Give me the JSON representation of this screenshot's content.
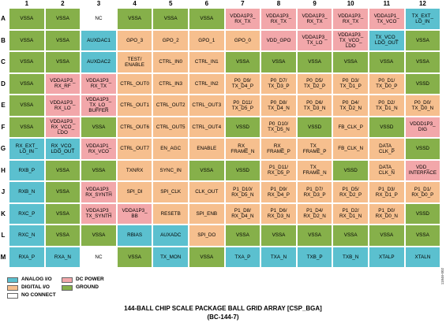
{
  "columns": [
    "1",
    "2",
    "3",
    "4",
    "5",
    "6",
    "7",
    "8",
    "9",
    "10",
    "11",
    "12"
  ],
  "rows": [
    "A",
    "B",
    "C",
    "D",
    "E",
    "F",
    "G",
    "H",
    "J",
    "K",
    "L",
    "M"
  ],
  "colors": {
    "analog": "#5bc0cf",
    "digital": "#f6bf8e",
    "power": "#f2a7aa",
    "ground": "#86b04a",
    "nc": "#ffffff"
  },
  "cells": [
    [
      "VSSA",
      "VSSA",
      "NC",
      "VSSA",
      "VSSA",
      "VSSA",
      "VDDA1P3_\nRX_TX",
      "VDDA1P3_\nRX_TX",
      "VDDA1P3_\nRX_TX",
      "VDDA1P3_\nRX_TX",
      "VDDA1P1_\nTX_VCO",
      "TX_EXT_\nLO_IN"
    ],
    [
      "VSSA",
      "VSSA",
      "AUXDAC1",
      "GPO_3",
      "GPO_2",
      "GPO_1",
      "GPO_0",
      "VDD_GPO",
      "VDDA1P3_\nTX_LO",
      "VDDA1P3_\nTX_VCO_\nLDO",
      "TX_VCO_\nLDO_OUT",
      "VSSA"
    ],
    [
      "VSSA",
      "VSSA",
      "AUXDAC2",
      "TEST/\nENABLE",
      "CTRL_IN0",
      "CTRL_IN1",
      "VSSA",
      "VSSA",
      "VSSA",
      "VSSA",
      "VSSA",
      "VSSA"
    ],
    [
      "VSSA",
      "VDDA1P3_\nRX_RF",
      "VDDA1P3_\nRX_TX",
      "CTRL_OUT0",
      "CTRL_IN3",
      "CTRL_IN2",
      "P0_D9/\nTX_D4_P",
      "P0_D7/\nTX_D3_P",
      "P0_D5/\nTX_D2_P",
      "P0_D3/\nTX_D1_P",
      "P0_D1/\nTX_D0_P",
      "VSSD"
    ],
    [
      "VSSA",
      "VDDA1P3_\nRX_LO",
      "VDDA1P3_\nTX_LO_\nBUFFER",
      "CTRL_OUT1",
      "CTRL_OUT2",
      "CTRL_OUT3",
      "P0_D11/\nTX_D5_P",
      "P0_D8/\nTX_D4_N",
      "P0_D6/\nTX_D3_N",
      "P0_D4/\nTX_D2_N",
      "P0_D2/\nTX_D1_N",
      "P0_D0/\nTX_D0_N"
    ],
    [
      "VSSA",
      "VDDA1P3_\nRX_VCO_\nLDO",
      "VSSA",
      "CTRL_OUT6",
      "CTRL_OUT5",
      "CTRL_OUT4",
      "VSSD",
      "P0_D10/\nTX_D5_N",
      "VSSD",
      "FB_CLK_P",
      "VSSD",
      "VDDD1P3_\nDIG"
    ],
    [
      "RX_EXT_\nLO_IN",
      "RX_VCO_\nLDO_OUT",
      "VDDA1P1_\nRX_VCO",
      "CTRL_OUT7",
      "EN_AGC",
      "ENABLE",
      "RX_\nFRAME_N",
      "RX_\nFRAME_P",
      "TX_\nFRAME_P",
      "FB_CLK_N",
      "DATA_\nCLK_P",
      "VSSD"
    ],
    [
      "RXB_P",
      "VSSA",
      "VSSA",
      "TXNRX",
      "SYNC_IN",
      "VSSA",
      "VSSD",
      "P1_D11/\nRX_D5_P",
      "TX_\nFRAME_N",
      "VSSD",
      "DATA_\nCLK_N",
      "VDD_\nINTERFACE"
    ],
    [
      "RXB_N",
      "VSSA",
      "VDDA1P3_\nRX_SYNTH",
      "SPI_DI",
      "SPI_CLK",
      "CLK_OUT",
      "P1_D10/\nRX_D5_N",
      "P1_D9/\nRX_D4_P",
      "P1_D7/\nRX_D3_P",
      "P1_D5/\nRX_D2_P",
      "P1_D3/\nRX_D1_P",
      "P1_D1/\nRX_D0_P"
    ],
    [
      "RXC_P",
      "VSSA",
      "VDDA1P3_\nTX_SYNTH",
      "VDDA1P3_\nBB",
      "RESETB",
      "SPI_ENB",
      "P1_D8/\nRX_D4_N",
      "P1_D6/\nRX_D3_N",
      "P1_D4/\nRX_D2_N",
      "P1_D2/\nRX_D1_N",
      "P1_D0/\nRX_D0_N",
      "VSSD"
    ],
    [
      "RXC_N",
      "VSSA",
      "VSSA",
      "RBIAS",
      "AUXADC",
      "SPI_DO",
      "VSSA",
      "VSSA",
      "VSSA",
      "VSSA",
      "VSSA",
      "VSSA"
    ],
    [
      "RXA_P",
      "RXA_N",
      "NC",
      "VSSA",
      "TX_MON",
      "VSSA",
      "TXA_P",
      "TXA_N",
      "TXB_P",
      "TXB_N",
      "XTALP",
      "XTALN"
    ]
  ],
  "types": [
    [
      "G",
      "G",
      "N",
      "G",
      "G",
      "G",
      "P",
      "P",
      "P",
      "P",
      "P",
      "A"
    ],
    [
      "G",
      "G",
      "A",
      "D",
      "D",
      "D",
      "D",
      "P",
      "P",
      "P",
      "A",
      "G"
    ],
    [
      "G",
      "G",
      "A",
      "D",
      "D",
      "D",
      "G",
      "G",
      "G",
      "G",
      "G",
      "G"
    ],
    [
      "G",
      "P",
      "P",
      "D",
      "D",
      "D",
      "D",
      "D",
      "D",
      "D",
      "D",
      "G"
    ],
    [
      "G",
      "P",
      "P",
      "D",
      "D",
      "D",
      "D",
      "D",
      "D",
      "D",
      "D",
      "D"
    ],
    [
      "G",
      "P",
      "G",
      "D",
      "D",
      "D",
      "G",
      "D",
      "G",
      "D",
      "G",
      "P"
    ],
    [
      "A",
      "A",
      "P",
      "D",
      "D",
      "D",
      "D",
      "D",
      "D",
      "D",
      "D",
      "G"
    ],
    [
      "A",
      "G",
      "G",
      "D",
      "D",
      "G",
      "G",
      "D",
      "D",
      "G",
      "D",
      "P"
    ],
    [
      "A",
      "G",
      "P",
      "D",
      "D",
      "D",
      "D",
      "D",
      "D",
      "D",
      "D",
      "D"
    ],
    [
      "A",
      "G",
      "P",
      "P",
      "D",
      "D",
      "D",
      "D",
      "D",
      "D",
      "D",
      "G"
    ],
    [
      "A",
      "G",
      "G",
      "A",
      "A",
      "D",
      "G",
      "G",
      "G",
      "G",
      "G",
      "G"
    ],
    [
      "A",
      "A",
      "N",
      "G",
      "A",
      "G",
      "A",
      "A",
      "A",
      "A",
      "A",
      "A"
    ]
  ],
  "legend": {
    "analog": "ANALOG I/O",
    "digital": "DIGITAL I/O",
    "nc": "NO CONNECT",
    "power": "DC POWER",
    "ground": "GROUND"
  },
  "caption": {
    "line1": "144-BALL CHIP SCALE PACKAGE BALL GRID ARRAY [CSP_BGA]",
    "line2": "(BC-144-7)"
  },
  "figure_id": "11846-002"
}
